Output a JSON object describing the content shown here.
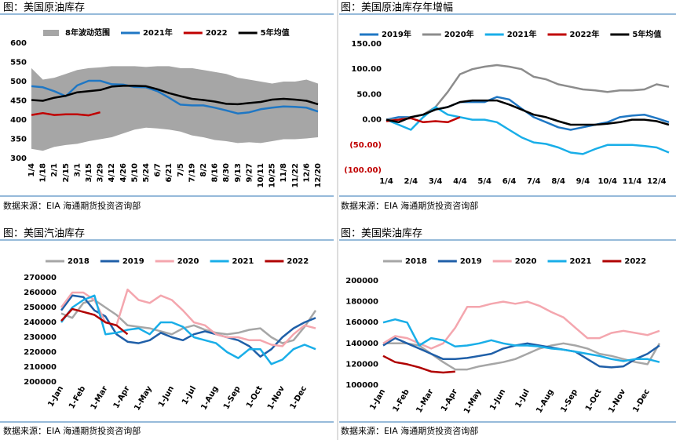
{
  "chart_data": [
    {
      "type": "line",
      "title": "图：美国原油库存",
      "source": "数据来源：EIA    海通期货投资咨询部",
      "categories": [
        "1/4",
        "1/18",
        "2/1",
        "2/15",
        "3/1",
        "3/15",
        "3/29",
        "4/12",
        "4/26",
        "5/10",
        "5/24",
        "6/7",
        "6/21",
        "7/5",
        "7/19",
        "8/2",
        "8/16",
        "8/30",
        "9/13",
        "9/27",
        "10/11",
        "10/25",
        "11/8",
        "11/22",
        "12/6",
        "12/20"
      ],
      "ylim": [
        300,
        600
      ],
      "yticks": [
        300,
        350,
        400,
        450,
        500,
        550,
        600
      ],
      "band": {
        "name": "8年波动范围",
        "color": "#a6a6a6",
        "high": [
          535,
          505,
          510,
          520,
          530,
          535,
          537,
          540,
          540,
          540,
          538,
          540,
          540,
          535,
          535,
          530,
          525,
          520,
          510,
          505,
          500,
          495,
          500,
          500,
          505,
          495
        ],
        "low": [
          325,
          320,
          330,
          335,
          338,
          345,
          350,
          355,
          365,
          375,
          380,
          378,
          375,
          370,
          360,
          355,
          348,
          345,
          340,
          342,
          340,
          345,
          350,
          350,
          352,
          355
        ]
      },
      "series": [
        {
          "name": "2021年",
          "color": "#1f77c4",
          "values": [
            488,
            485,
            475,
            462,
            490,
            502,
            502,
            493,
            492,
            486,
            485,
            475,
            458,
            440,
            438,
            438,
            432,
            425,
            417,
            420,
            428,
            432,
            435,
            434,
            432,
            422
          ]
        },
        {
          "name": "2022",
          "color": "#c00000",
          "values": [
            413,
            418,
            413,
            415,
            415,
            412,
            420,
            null,
            null,
            null,
            null,
            null,
            null,
            null,
            null,
            null,
            null,
            null,
            null,
            null,
            null,
            null,
            null,
            null,
            null,
            null
          ]
        },
        {
          "name": "5年均值",
          "color": "#000000",
          "values": [
            452,
            450,
            458,
            463,
            472,
            475,
            478,
            487,
            489,
            489,
            488,
            480,
            470,
            462,
            455,
            452,
            448,
            442,
            441,
            444,
            447,
            453,
            455,
            453,
            450,
            441
          ]
        }
      ]
    },
    {
      "type": "line",
      "title": "图：美国原油库存年增幅",
      "source": "数据来源：EIA    海通期货投资咨询部",
      "categories": [
        "1/4",
        null,
        "2/4",
        null,
        "3/4",
        null,
        "4/4",
        null,
        "5/4",
        null,
        "6/4",
        null,
        "7/4",
        null,
        "8/4",
        null,
        "9/4",
        null,
        "10/4",
        null,
        "11/4",
        null,
        "12/4",
        null
      ],
      "ylim": [
        -100,
        150
      ],
      "yticks": [
        {
          "value": -100,
          "label": "(100.00)"
        },
        {
          "value": -50,
          "label": "(50.00)"
        },
        {
          "value": 0,
          "label": "0.00"
        },
        {
          "value": 50,
          "label": "50.00"
        },
        {
          "value": 100,
          "label": "100.00"
        },
        {
          "value": 150,
          "label": "150.00"
        }
      ],
      "series": [
        {
          "name": "2019年",
          "color": "#1f77c4",
          "values": [
            0,
            5,
            5,
            10,
            20,
            25,
            35,
            35,
            35,
            45,
            40,
            22,
            5,
            -5,
            -15,
            -20,
            -15,
            -10,
            -5,
            5,
            8,
            10,
            3,
            -5
          ]
        },
        {
          "name": "2020年",
          "color": "#8c8c8c",
          "values": [
            0,
            0,
            5,
            10,
            25,
            55,
            90,
            100,
            105,
            108,
            105,
            100,
            85,
            80,
            70,
            65,
            60,
            58,
            55,
            58,
            58,
            60,
            70,
            65
          ]
        },
        {
          "name": "2021年",
          "color": "#19aee8",
          "values": [
            0,
            -10,
            -20,
            5,
            25,
            10,
            5,
            0,
            0,
            -5,
            -20,
            -35,
            -45,
            -48,
            -55,
            -65,
            -68,
            -58,
            -50,
            -50,
            -50,
            -52,
            -55,
            -65
          ]
        },
        {
          "name": "2022年",
          "color": "#c00000",
          "values": [
            -3,
            0,
            3,
            -5,
            -3,
            -5,
            5,
            null,
            null,
            null,
            null,
            null,
            null,
            null,
            null,
            null,
            null,
            null,
            null,
            null,
            null,
            null,
            null,
            null
          ]
        },
        {
          "name": "5年均值",
          "color": "#000000",
          "values": [
            0,
            -5,
            5,
            10,
            20,
            25,
            35,
            38,
            38,
            38,
            30,
            20,
            10,
            5,
            -3,
            -10,
            -10,
            -10,
            -8,
            -5,
            0,
            0,
            -3,
            -10
          ]
        }
      ]
    },
    {
      "type": "line",
      "title": "图：美国汽油库存",
      "source": "数据来源：EIA    海通期货投资咨询部",
      "categories": [
        "1-Jan",
        null,
        "1-Feb",
        null,
        "1-Mar",
        null,
        "1-Apr",
        null,
        "1-May",
        null,
        "1-Jun",
        null,
        "1-Jul",
        null,
        "1-Aug",
        null,
        "1-Sep",
        null,
        "1-Oct",
        null,
        "1-Nov",
        null,
        "1-Dec",
        null
      ],
      "ylim": [
        200000,
        270000
      ],
      "yticks": [
        200000,
        210000,
        220000,
        230000,
        240000,
        250000,
        260000,
        270000
      ],
      "series": [
        {
          "name": "2018",
          "color": "#a6a6a6",
          "values": [
            246000,
            243000,
            253000,
            255000,
            250000,
            245000,
            238000,
            237000,
            236000,
            234000,
            232000,
            236000,
            238000,
            235000,
            233000,
            232000,
            233000,
            235000,
            236000,
            230000,
            226000,
            228000,
            237000,
            248000
          ]
        },
        {
          "name": "2019",
          "color": "#1f5fa8",
          "values": [
            248000,
            258000,
            257000,
            248000,
            244000,
            232000,
            227000,
            226000,
            228000,
            233000,
            230000,
            228000,
            232000,
            234000,
            232000,
            230000,
            228000,
            224000,
            217000,
            222000,
            230000,
            236000,
            240000,
            243000
          ]
        },
        {
          "name": "2020",
          "color": "#f4a6ae",
          "values": [
            250000,
            260000,
            260000,
            255000,
            240000,
            238000,
            262000,
            255000,
            253000,
            258000,
            255000,
            248000,
            240000,
            238000,
            232000,
            230000,
            230000,
            228000,
            228000,
            225000,
            224000,
            232000,
            238000,
            236000
          ]
        },
        {
          "name": "2021",
          "color": "#19aee8",
          "values": [
            240000,
            250000,
            255000,
            258000,
            232000,
            233000,
            235000,
            236000,
            232000,
            240000,
            240000,
            237000,
            230000,
            228000,
            226000,
            220000,
            216000,
            222000,
            222000,
            212000,
            215000,
            222000,
            225000,
            222000
          ]
        },
        {
          "name": "2022",
          "color": "#b00000",
          "values": [
            241000,
            249000,
            247000,
            245000,
            240000,
            238000,
            232000,
            null,
            null,
            null,
            null,
            null,
            null,
            null,
            null,
            null,
            null,
            null,
            null,
            null,
            null,
            null,
            null,
            null
          ]
        }
      ]
    },
    {
      "type": "line",
      "title": "图：美国柴油库存",
      "source": "数据来源：EIA    海通期货投资咨询部",
      "categories": [
        "1-Jan",
        null,
        "1-Feb",
        null,
        "1-Mar",
        null,
        "1-Apr",
        null,
        "1-May",
        null,
        "1-Jun",
        null,
        "1-Jul",
        null,
        "1-Aug",
        null,
        "1-Sep",
        null,
        "1-Oct",
        null,
        "1-Nov",
        null,
        "1-Dec",
        null
      ],
      "ylim": [
        100000,
        200000
      ],
      "yticks": [
        100000,
        120000,
        140000,
        160000,
        180000,
        200000
      ],
      "series": [
        {
          "name": "2018",
          "color": "#a6a6a6",
          "values": [
            140000,
            140000,
            140000,
            138000,
            130000,
            122000,
            115000,
            115000,
            118000,
            120000,
            122000,
            125000,
            130000,
            135000,
            138000,
            140000,
            138000,
            135000,
            130000,
            128000,
            125000,
            122000,
            120000,
            140000
          ]
        },
        {
          "name": "2019",
          "color": "#1f5fa8",
          "values": [
            138000,
            145000,
            140000,
            135000,
            130000,
            125000,
            125000,
            126000,
            128000,
            130000,
            135000,
            138000,
            140000,
            138000,
            136000,
            134000,
            132000,
            125000,
            118000,
            117000,
            118000,
            125000,
            130000,
            138000
          ]
        },
        {
          "name": "2020",
          "color": "#f4a6ae",
          "values": [
            140000,
            147000,
            145000,
            140000,
            135000,
            140000,
            155000,
            175000,
            175000,
            178000,
            180000,
            178000,
            180000,
            176000,
            170000,
            165000,
            155000,
            145000,
            145000,
            150000,
            152000,
            150000,
            148000,
            152000
          ]
        },
        {
          "name": "2021",
          "color": "#19aee8",
          "values": [
            160000,
            163000,
            160000,
            138000,
            145000,
            143000,
            137000,
            138000,
            140000,
            143000,
            140000,
            138000,
            138000,
            137000,
            135000,
            134000,
            132000,
            130000,
            128000,
            125000,
            123000,
            125000,
            125000,
            122000
          ]
        },
        {
          "name": "2022",
          "color": "#b00000",
          "values": [
            128000,
            122000,
            120000,
            117000,
            113000,
            112000,
            113000,
            null,
            null,
            null,
            null,
            null,
            null,
            null,
            null,
            null,
            null,
            null,
            null,
            null,
            null,
            null,
            null,
            null
          ]
        }
      ]
    }
  ]
}
